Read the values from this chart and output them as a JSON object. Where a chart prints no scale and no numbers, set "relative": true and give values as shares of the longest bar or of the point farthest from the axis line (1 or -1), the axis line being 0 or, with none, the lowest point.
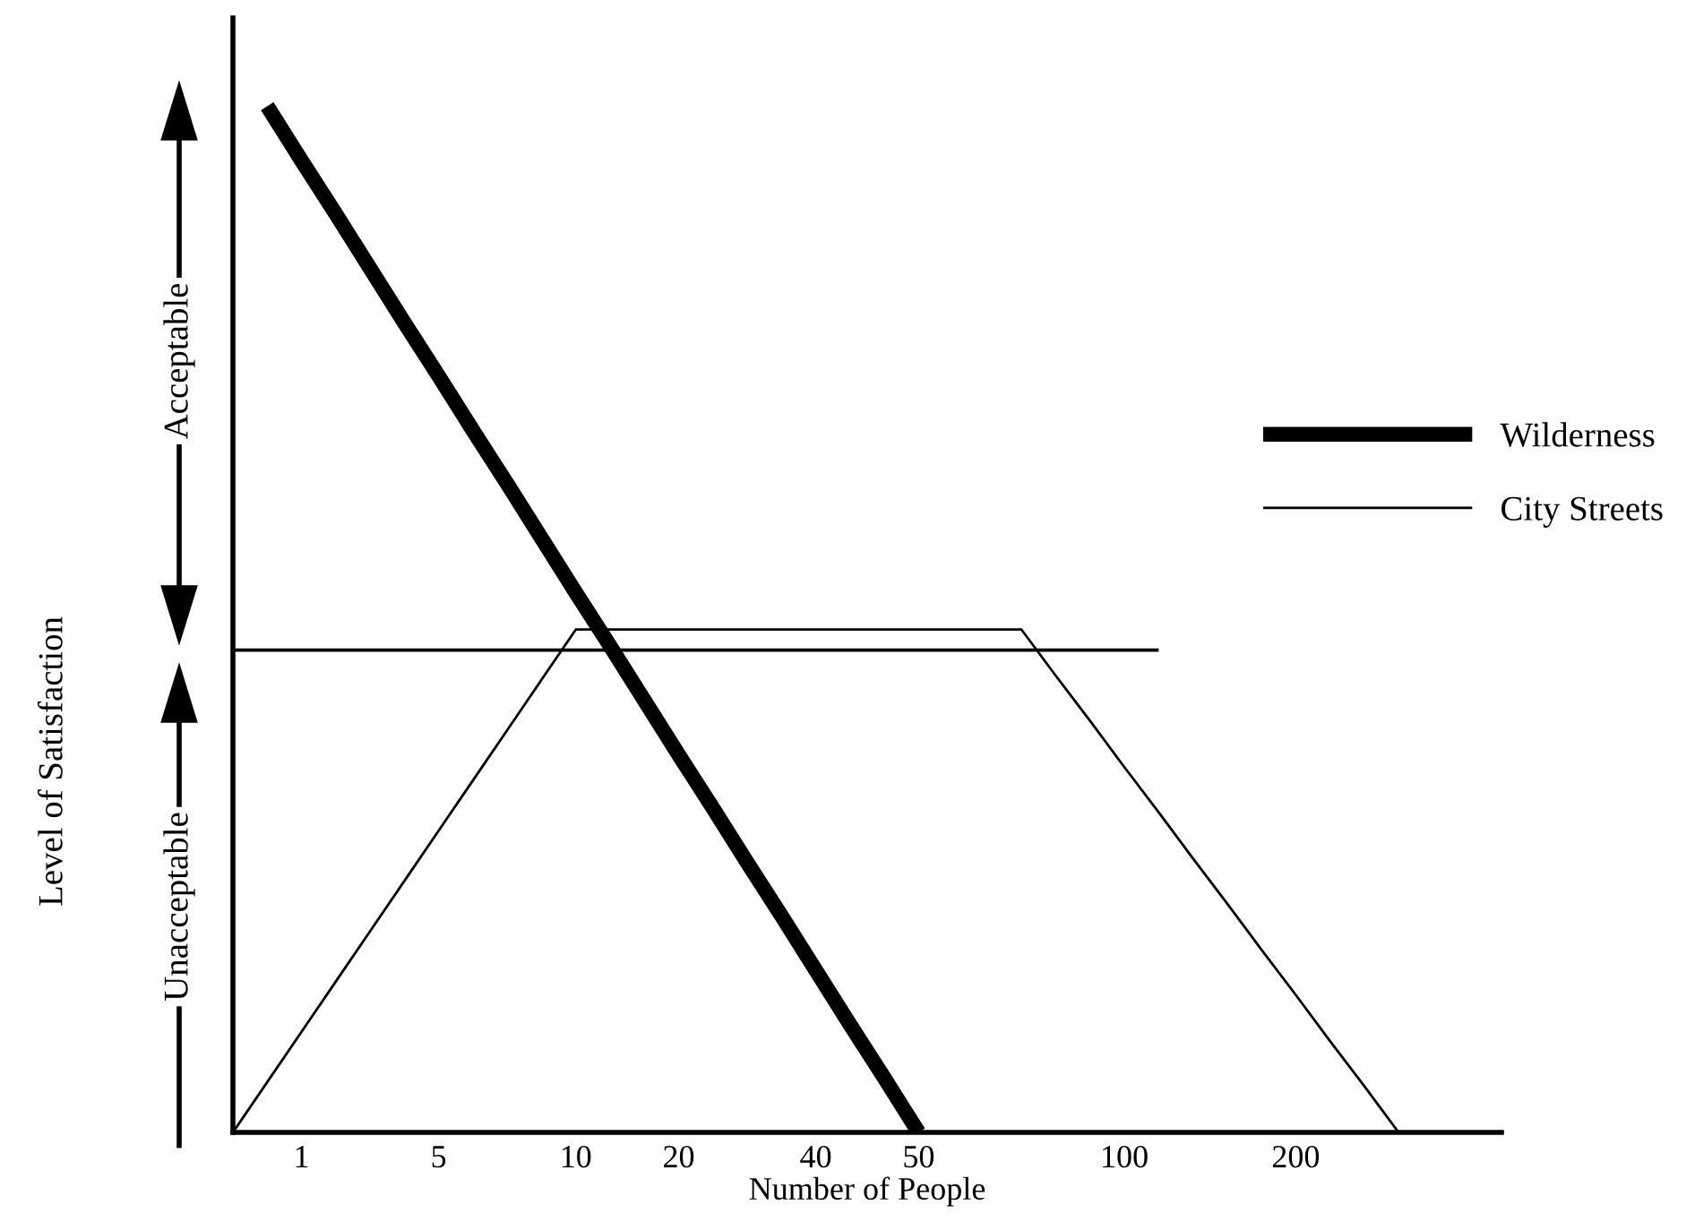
{
  "chart_data": {
    "type": "line",
    "relative": true,
    "xlabel": "Number of People",
    "ylabel": "Level of Satisfaction",
    "annotations": [
      "Acceptable",
      "Unacceptable"
    ],
    "categories": [
      null,
      null,
      "1",
      null,
      null,
      null,
      "5",
      null,
      null,
      null,
      "10",
      null,
      null,
      "20",
      null,
      null,
      null,
      "40",
      null,
      null,
      "50",
      null,
      null,
      null,
      null,
      null,
      "100",
      null,
      null,
      null,
      null,
      "200",
      null,
      null,
      null,
      null,
      null,
      null
    ],
    "series": [
      {
        "name": "Wilderness",
        "color": "#000000",
        "values": [
          null,
          1.0,
          0.947,
          0.895,
          0.842,
          0.789,
          0.737,
          0.684,
          0.632,
          0.579,
          0.526,
          0.474,
          0.421,
          0.368,
          0.316,
          0.263,
          0.211,
          0.158,
          0.105,
          0.053,
          0.0,
          null,
          null,
          null,
          null,
          null,
          null,
          null,
          null,
          null,
          null,
          null,
          null,
          null,
          null,
          null,
          null,
          null
        ]
      },
      {
        "name": "City Streets",
        "color": "#000000",
        "values": [
          0,
          0.049,
          0.098,
          0.147,
          0.196,
          0.245,
          0.294,
          0.343,
          0.392,
          0.441,
          0.49,
          0.49,
          0.49,
          0.49,
          0.49,
          0.49,
          0.49,
          0.49,
          0.49,
          0.49,
          0.49,
          0.49,
          0.49,
          0.49,
          0.445,
          0.401,
          0.356,
          0.312,
          0.267,
          0.223,
          0.178,
          0.134,
          0.089,
          0.045,
          0,
          null,
          null,
          null
        ]
      },
      {
        "color": "#000000",
        "values": [
          0.47,
          0.47,
          0.47,
          0.47,
          0.47,
          0.47,
          0.47,
          0.47,
          0.47,
          0.47,
          0.47,
          0.47,
          0.47,
          0.47,
          0.47,
          0.47,
          0.47,
          0.47,
          0.47,
          0.47,
          0.47,
          0.47,
          0.47,
          0.47,
          0.47,
          0.47,
          0.47,
          0.47,
          null,
          null,
          null,
          null,
          null,
          null,
          null,
          null,
          null,
          null
        ]
      }
    ],
    "legend": "right",
    "grid": false,
    "marker": "none",
    "line_style": "solid"
  }
}
